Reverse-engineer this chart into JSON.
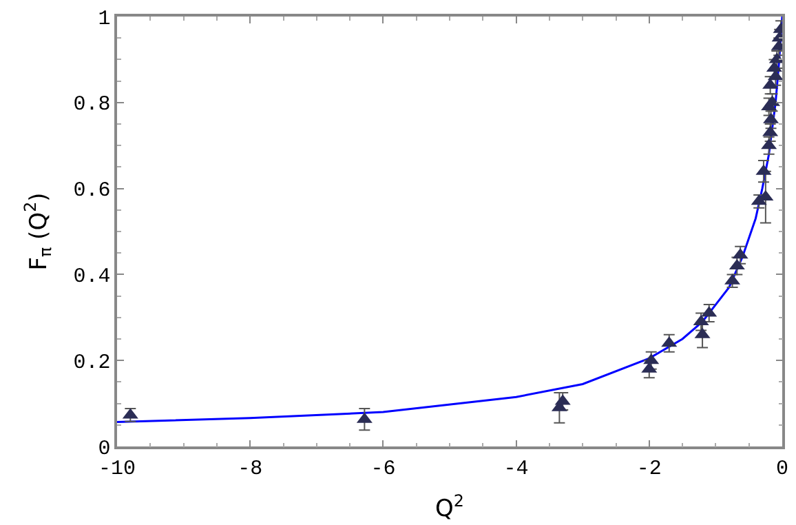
{
  "chart_data": {
    "type": "scatter",
    "xlabel": "Q$^{2}$",
    "ylabel": "F$_{π}$ (Q$^{2}$)",
    "xlim": [
      -10,
      0
    ],
    "ylim": [
      0,
      1
    ],
    "xticks": [
      -10,
      -8,
      -6,
      -4,
      -2,
      0
    ],
    "yticks": [
      0,
      0.2,
      0.4,
      0.6,
      0.8,
      1
    ],
    "series": [
      {
        "type": "line",
        "color": "#0000ff",
        "marker": "none",
        "line_style": "solid",
        "x": [
          -10,
          -8,
          -6,
          -4,
          -3,
          -2,
          -1.5,
          -1.2,
          -1,
          -0.8,
          -0.6,
          -0.4,
          -0.3,
          -0.2,
          -0.1,
          -0.05,
          0
        ],
        "values": [
          0.057,
          0.066,
          0.08,
          0.115,
          0.145,
          0.205,
          0.25,
          0.29,
          0.33,
          0.37,
          0.44,
          0.53,
          0.6,
          0.68,
          0.8,
          0.89,
          1
        ]
      },
      {
        "color": "#2b2d55",
        "marker": "triangle",
        "x": [
          -9.8,
          -6.28,
          -3.35,
          -3.3,
          -2.0,
          -1.97,
          -1.7,
          -1.22,
          -1.2,
          -1.1,
          -0.75,
          -0.68,
          -0.63,
          -0.35,
          -0.28,
          -0.25,
          -0.2,
          -0.18,
          -0.17,
          -0.2,
          -0.15,
          -0.18,
          -0.1,
          -0.12,
          -0.08,
          -0.05,
          -0.04,
          -0.02
        ],
        "values": [
          0.073,
          0.063,
          0.09,
          0.105,
          0.18,
          0.2,
          0.24,
          0.29,
          0.26,
          0.31,
          0.385,
          0.42,
          0.445,
          0.57,
          0.64,
          0.58,
          0.7,
          0.73,
          0.76,
          0.79,
          0.8,
          0.84,
          0.86,
          0.88,
          0.9,
          0.93,
          0.95,
          0.97
        ],
        "errors": [
          0.015,
          0.025,
          0.035,
          0.02,
          0.02,
          0.02,
          0.02,
          0.02,
          0.03,
          0.02,
          0.015,
          0.02,
          0.02,
          0.015,
          0.025,
          0.06,
          0.02,
          0.02,
          0.02,
          0.02,
          0.02,
          0.02,
          0.02,
          0.02,
          0.02,
          0.02,
          0.02,
          0.02
        ]
      }
    ]
  }
}
